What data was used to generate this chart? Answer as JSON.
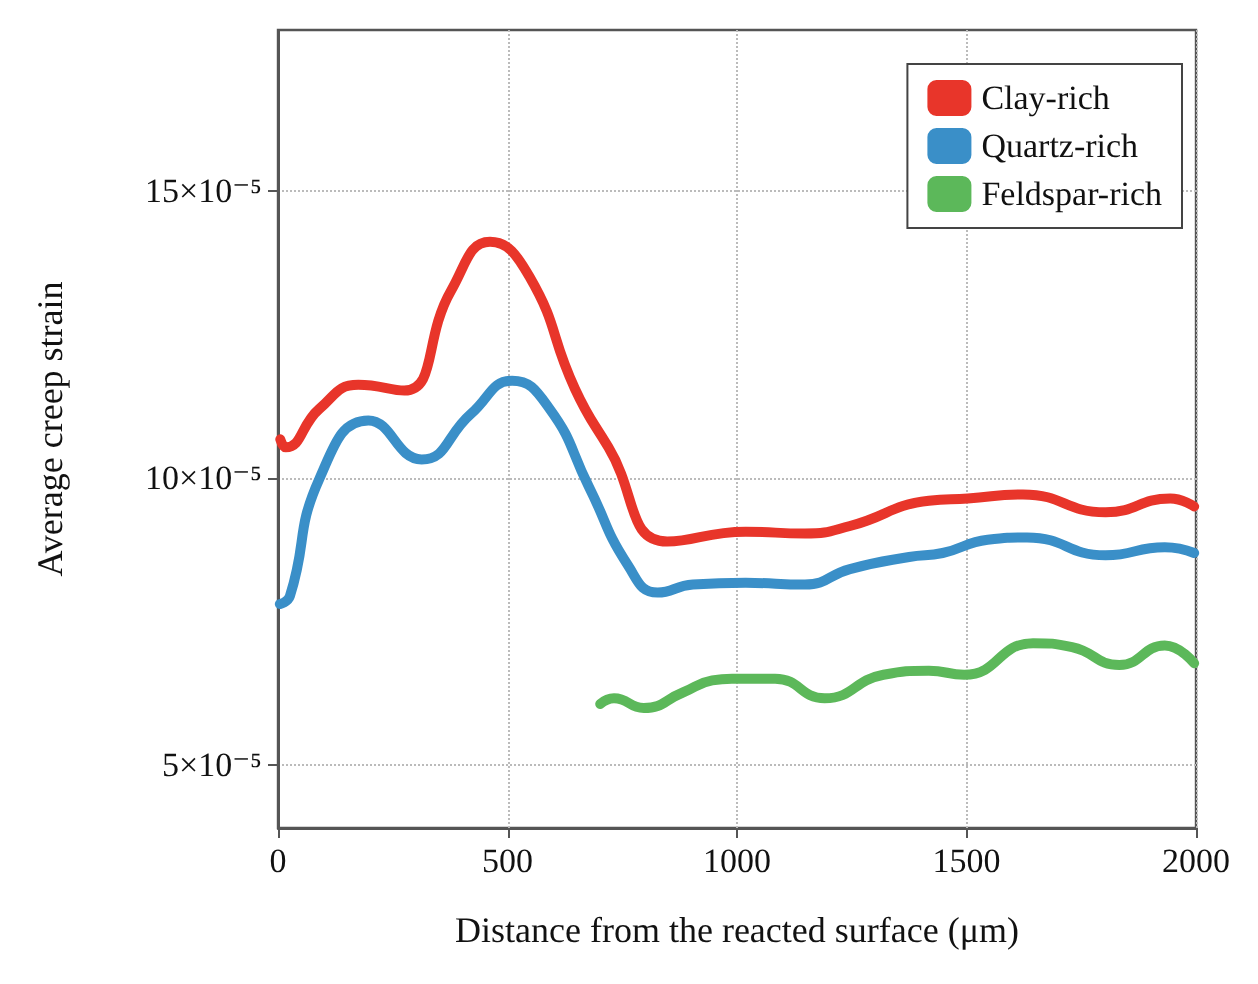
{
  "chart_data": {
    "type": "line",
    "xlabel": "Distance from the reacted surface (μm)",
    "ylabel": "Average creep strain",
    "xlim": [
      0,
      2000
    ],
    "xticks": [
      0,
      500,
      1000,
      1500,
      2000
    ],
    "ylim": [
      3.9e-05,
      0.000178
    ],
    "yticks": [
      {
        "value": 5e-05,
        "label": "5×10⁻⁵"
      },
      {
        "value": 0.0001,
        "label": "10×10⁻⁵"
      },
      {
        "value": 0.00015,
        "label": "15×10⁻⁵"
      }
    ],
    "grid": true,
    "legend": "top right",
    "line_style": "solid",
    "marker": "none",
    "series": [
      {
        "name": "Clay-rich",
        "color": "#e8352a",
        "x": [
          5,
          17,
          90,
          175,
          275,
          377,
          462,
          548,
          647,
          720,
          848,
          1019,
          1148,
          1246,
          1418,
          1503,
          1623,
          1803,
          1944,
          1996
        ],
        "values": [
          0.0001067,
          0.0001053,
          0.000112,
          0.0001162,
          0.0001152,
          0.0001326,
          0.0001411,
          0.000135,
          0.0001155,
          0.0001053,
          8.89e-05,
          9.06e-05,
          9.03e-05,
          9.16e-05,
          9.6e-05,
          9.64e-05,
          9.71e-05,
          9.4e-05,
          9.64e-05,
          9.5e-05
        ]
      },
      {
        "name": "Quartz-rich",
        "color": "#3a8fc8",
        "x": [
          4,
          26,
          90,
          197,
          313,
          420,
          510,
          591,
          677,
          762,
          827,
          904,
          1019,
          1148,
          1246,
          1375,
          1448,
          1546,
          1632,
          1803,
          1932,
          1996
        ],
        "values": [
          7.8e-05,
          7.94e-05,
          9.98e-05,
          0.00011,
          0.0001032,
          0.0001111,
          0.0001169,
          0.0001121,
          9.85e-05,
          8.48e-05,
          8e-05,
          8.14e-05,
          8.17e-05,
          8.14e-05,
          8.41e-05,
          8.62e-05,
          8.69e-05,
          8.92e-05,
          8.96e-05,
          8.65e-05,
          8.79e-05,
          8.69e-05
        ]
      },
      {
        "name": "Feldspar-rich",
        "color": "#5cb85a",
        "x": [
          702,
          732,
          797,
          882,
          946,
          989,
          1083,
          1191,
          1319,
          1418,
          1495,
          1645,
          1730,
          1833,
          1932,
          1996
        ],
        "values": [
          6.06e-05,
          6.16e-05,
          5.99e-05,
          6.26e-05,
          6.47e-05,
          6.5e-05,
          6.5e-05,
          6.16e-05,
          6.57e-05,
          6.64e-05,
          6.57e-05,
          7.12e-05,
          7.05e-05,
          6.74e-05,
          7.08e-05,
          6.77e-05
        ]
      }
    ]
  }
}
